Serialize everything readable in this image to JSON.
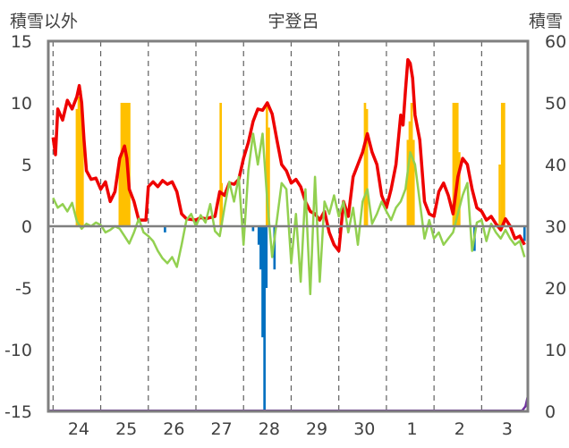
{
  "chart_data": {
    "type": "line",
    "title": "宇登呂",
    "ylabel_left": "積雪以外",
    "ylabel_right": "積雪",
    "x_tick_labels": [
      "24",
      "25",
      "26",
      "27",
      "28",
      "29",
      "30",
      "1",
      "2",
      "3"
    ],
    "ylim_left": [
      -15,
      15
    ],
    "ylim_right": [
      0,
      60
    ],
    "y_ticks_left": [
      "15",
      "10",
      "5",
      "0",
      "-5",
      "-10",
      "-15"
    ],
    "y_ticks_right": [
      "60",
      "50",
      "40",
      "30",
      "20",
      "10",
      "0"
    ],
    "grid": "vertical dashed at day boundaries",
    "colors": {
      "red_line": "#ee0000",
      "green_line": "#92d050",
      "orange_bars": "#ffc000",
      "blue_bars": "#0070c0",
      "purple_line": "#7030a0"
    },
    "series": [
      {
        "color": "red",
        "axis": "left",
        "points": [
          [
            23.5,
            7.2
          ],
          [
            23.55,
            5.8
          ],
          [
            23.6,
            9.5
          ],
          [
            23.7,
            8.6
          ],
          [
            23.8,
            10.2
          ],
          [
            23.9,
            9.5
          ],
          [
            24.0,
            10.5
          ],
          [
            24.05,
            11.4
          ],
          [
            24.1,
            10.0
          ],
          [
            24.15,
            7.0
          ],
          [
            24.2,
            4.5
          ],
          [
            24.3,
            3.8
          ],
          [
            24.4,
            3.9
          ],
          [
            24.5,
            3.0
          ],
          [
            24.6,
            3.6
          ],
          [
            24.7,
            2.0
          ],
          [
            24.8,
            2.8
          ],
          [
            24.9,
            5.5
          ],
          [
            25.0,
            6.5
          ],
          [
            25.05,
            5.5
          ],
          [
            25.1,
            3.0
          ],
          [
            25.2,
            2.0
          ],
          [
            25.3,
            0.5
          ],
          [
            25.45,
            0.5
          ],
          [
            25.5,
            3.2
          ],
          [
            25.6,
            3.6
          ],
          [
            25.7,
            3.2
          ],
          [
            25.8,
            3.7
          ],
          [
            25.9,
            3.4
          ],
          [
            26.0,
            3.6
          ],
          [
            26.1,
            2.8
          ],
          [
            26.2,
            1.0
          ],
          [
            26.3,
            0.6
          ],
          [
            26.5,
            0.5
          ],
          [
            26.6,
            0.7
          ],
          [
            26.7,
            0.6
          ],
          [
            26.8,
            0.7
          ],
          [
            26.9,
            0.8
          ],
          [
            27.0,
            2.8
          ],
          [
            27.1,
            2.5
          ],
          [
            27.2,
            3.5
          ],
          [
            27.3,
            3.4
          ],
          [
            27.4,
            3.8
          ],
          [
            27.5,
            5.5
          ],
          [
            27.6,
            6.8
          ],
          [
            27.7,
            8.5
          ],
          [
            27.8,
            9.5
          ],
          [
            27.9,
            9.4
          ],
          [
            28.0,
            10.0
          ],
          [
            28.1,
            9.1
          ],
          [
            28.2,
            7.0
          ],
          [
            28.3,
            5.0
          ],
          [
            28.4,
            4.5
          ],
          [
            28.5,
            3.5
          ],
          [
            28.6,
            3.8
          ],
          [
            28.7,
            3.2
          ],
          [
            28.8,
            2.0
          ],
          [
            28.9,
            1.2
          ],
          [
            29.0,
            1.0
          ],
          [
            29.1,
            0.5
          ],
          [
            29.2,
            1.2
          ],
          [
            29.3,
            -0.5
          ],
          [
            29.4,
            -1.5
          ],
          [
            29.5,
            -2.0
          ],
          [
            29.6,
            2.0
          ],
          [
            29.7,
            0.8
          ],
          [
            29.8,
            4.0
          ],
          [
            29.9,
            5.0
          ],
          [
            30.0,
            6.0
          ],
          [
            30.1,
            7.5
          ],
          [
            30.2,
            6.0
          ],
          [
            30.3,
            5.0
          ],
          [
            30.4,
            2.5
          ],
          [
            30.5,
            1.5
          ],
          [
            30.6,
            3.0
          ],
          [
            30.7,
            5.0
          ],
          [
            30.8,
            9.0
          ],
          [
            30.85,
            8.2
          ],
          [
            30.9,
            11.0
          ],
          [
            30.95,
            13.5
          ],
          [
            31.0,
            13.2
          ],
          [
            31.05,
            12.0
          ],
          [
            31.1,
            9.0
          ],
          [
            31.2,
            7.0
          ],
          [
            31.3,
            2.0
          ],
          [
            31.4,
            1.0
          ],
          [
            31.5,
            0.8
          ],
          [
            31.6,
            2.8
          ],
          [
            31.7,
            3.5
          ],
          [
            31.8,
            2.5
          ],
          [
            31.9,
            1.0
          ],
          [
            32.0,
            4.0
          ],
          [
            32.1,
            5.5
          ],
          [
            32.2,
            5.0
          ],
          [
            32.3,
            3.0
          ],
          [
            32.4,
            1.5
          ],
          [
            32.5,
            1.2
          ],
          [
            32.6,
            0.5
          ],
          [
            32.7,
            0.8
          ],
          [
            32.8,
            0.2
          ],
          [
            32.9,
            -0.3
          ],
          [
            33.0,
            0.6
          ],
          [
            33.1,
            0.0
          ],
          [
            33.2,
            -1.0
          ],
          [
            33.3,
            -0.8
          ],
          [
            33.4,
            -1.5
          ]
        ]
      },
      {
        "color": "green",
        "axis": "left",
        "points": [
          [
            23.5,
            2.3
          ],
          [
            23.6,
            1.5
          ],
          [
            23.7,
            1.8
          ],
          [
            23.8,
            1.2
          ],
          [
            23.9,
            1.9
          ],
          [
            24.0,
            0.4
          ],
          [
            24.1,
            -0.2
          ],
          [
            24.2,
            0.2
          ],
          [
            24.3,
            0.0
          ],
          [
            24.4,
            0.3
          ],
          [
            24.5,
            0.1
          ],
          [
            24.6,
            -0.5
          ],
          [
            24.7,
            -0.3
          ],
          [
            24.8,
            0.0
          ],
          [
            24.9,
            -0.2
          ],
          [
            25.0,
            -0.8
          ],
          [
            25.1,
            -1.4
          ],
          [
            25.2,
            -0.5
          ],
          [
            25.3,
            0.6
          ],
          [
            25.4,
            -0.5
          ],
          [
            25.5,
            -0.8
          ],
          [
            25.6,
            -1.2
          ],
          [
            25.7,
            -2.0
          ],
          [
            25.8,
            -2.6
          ],
          [
            25.9,
            -3.0
          ],
          [
            26.0,
            -2.5
          ],
          [
            26.1,
            -3.3
          ],
          [
            26.2,
            -1.5
          ],
          [
            26.3,
            0.5
          ],
          [
            26.4,
            1.0
          ],
          [
            26.5,
            0.0
          ],
          [
            26.6,
            0.9
          ],
          [
            26.7,
            0.3
          ],
          [
            26.8,
            1.8
          ],
          [
            26.9,
            -0.4
          ],
          [
            27.0,
            -0.8
          ],
          [
            27.1,
            1.5
          ],
          [
            27.2,
            3.6
          ],
          [
            27.3,
            2.0
          ],
          [
            27.4,
            4.0
          ],
          [
            27.5,
            -1.5
          ],
          [
            27.6,
            4.5
          ],
          [
            27.7,
            7.5
          ],
          [
            27.8,
            5.0
          ],
          [
            27.9,
            7.5
          ],
          [
            28.0,
            2.0
          ],
          [
            28.1,
            -2.5
          ],
          [
            28.2,
            0.5
          ],
          [
            28.3,
            3.5
          ],
          [
            28.4,
            3.0
          ],
          [
            28.5,
            -3.0
          ],
          [
            28.6,
            1.0
          ],
          [
            28.7,
            -4.5
          ],
          [
            28.8,
            3.0
          ],
          [
            28.9,
            -5.5
          ],
          [
            29.0,
            4.0
          ],
          [
            29.1,
            -4.5
          ],
          [
            29.2,
            2.0
          ],
          [
            29.3,
            1.0
          ],
          [
            29.4,
            2.5
          ],
          [
            29.5,
            0.8
          ],
          [
            29.6,
            2.0
          ],
          [
            29.7,
            -0.5
          ],
          [
            29.8,
            1.5
          ],
          [
            29.9,
            -1.5
          ],
          [
            30.0,
            2.0
          ],
          [
            30.1,
            3.0
          ],
          [
            30.2,
            0.2
          ],
          [
            30.3,
            1.0
          ],
          [
            30.4,
            2.0
          ],
          [
            30.5,
            1.2
          ],
          [
            30.6,
            0.5
          ],
          [
            30.7,
            1.5
          ],
          [
            30.8,
            2.0
          ],
          [
            30.9,
            3.0
          ],
          [
            31.0,
            6.0
          ],
          [
            31.1,
            5.0
          ],
          [
            31.2,
            2.0
          ],
          [
            31.3,
            -1.0
          ],
          [
            31.4,
            0.5
          ],
          [
            31.5,
            -1.0
          ],
          [
            31.6,
            -0.5
          ],
          [
            31.7,
            -1.5
          ],
          [
            31.8,
            -1.0
          ],
          [
            31.9,
            -0.5
          ],
          [
            32.0,
            1.0
          ],
          [
            32.1,
            2.5
          ],
          [
            32.2,
            3.5
          ],
          [
            32.3,
            -2.0
          ],
          [
            32.4,
            0.3
          ],
          [
            32.5,
            0.5
          ],
          [
            32.6,
            -1.2
          ],
          [
            32.7,
            0.2
          ],
          [
            32.8,
            -0.5
          ],
          [
            32.9,
            -1.0
          ],
          [
            33.0,
            -0.3
          ],
          [
            33.1,
            -1.0
          ],
          [
            33.2,
            -1.5
          ],
          [
            33.3,
            -1.2
          ],
          [
            33.4,
            -2.5
          ]
        ]
      },
      {
        "color": "purple",
        "axis": "right",
        "points": [
          [
            23.4,
            0.1
          ],
          [
            33.35,
            0.1
          ],
          [
            33.42,
            0.8
          ],
          [
            33.47,
            2.5
          ]
        ]
      }
    ],
    "bars": [
      {
        "color": "orange",
        "axis": "left",
        "bars": [
          [
            24.0,
            9.5
          ],
          [
            24.04,
            10.5
          ],
          [
            24.08,
            11.0
          ],
          [
            24.12,
            8.0
          ],
          [
            24.9,
            5.5
          ],
          [
            24.94,
            10.0
          ],
          [
            24.98,
            10.0
          ],
          [
            25.02,
            10.0
          ],
          [
            25.06,
            10.0
          ],
          [
            25.1,
            10.0
          ],
          [
            27.02,
            10.0
          ],
          [
            27.04,
            3.5
          ],
          [
            27.99,
            10.0
          ],
          [
            28.03,
            8.0
          ],
          [
            30.05,
            10.0
          ],
          [
            30.09,
            9.5
          ],
          [
            30.95,
            7.0
          ],
          [
            30.99,
            8.5
          ],
          [
            31.03,
            10.0
          ],
          [
            31.07,
            7.0
          ],
          [
            31.91,
            10.0
          ],
          [
            31.95,
            10.0
          ],
          [
            31.99,
            10.0
          ],
          [
            32.03,
            6.0
          ],
          [
            32.88,
            5.0
          ],
          [
            32.93,
            10.0
          ],
          [
            32.97,
            10.0
          ]
        ]
      },
      {
        "color": "blue",
        "axis": "left",
        "bars": [
          [
            25.85,
            -0.5
          ],
          [
            27.7,
            -0.4
          ],
          [
            27.82,
            -1.5
          ],
          [
            27.86,
            -3.5
          ],
          [
            27.9,
            -9.0
          ],
          [
            27.94,
            -15.0
          ],
          [
            27.98,
            -5.0
          ],
          [
            28.15,
            -3.5
          ],
          [
            32.35,
            -2.0
          ],
          [
            33.4,
            -1.2
          ]
        ]
      }
    ]
  }
}
